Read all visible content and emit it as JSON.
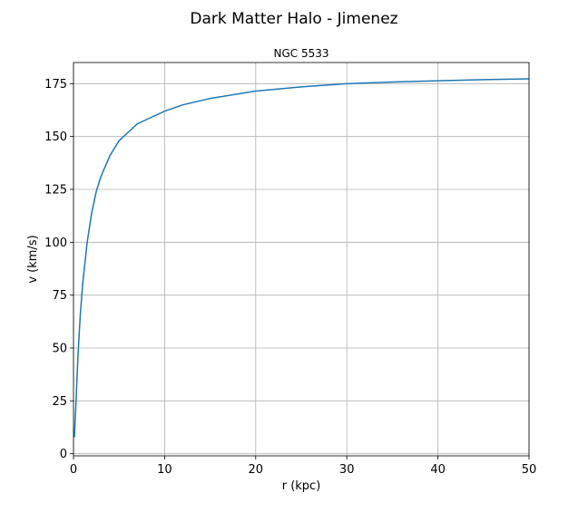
{
  "figure": {
    "suptitle": "Dark Matter Halo - Jimenez"
  },
  "chart_data": {
    "type": "line",
    "title": "NGC 5533",
    "xlabel": "r (kpc)",
    "ylabel": "v (km/s)",
    "xlim": [
      0,
      50
    ],
    "ylim": [
      -1,
      185
    ],
    "xticks": [
      0,
      10,
      20,
      30,
      40,
      50
    ],
    "yticks": [
      0,
      25,
      50,
      75,
      100,
      125,
      150,
      175
    ],
    "grid": true,
    "legend": "none",
    "series": [
      {
        "color": "#1f77b4",
        "x": [
          0.1,
          0.25,
          0.5,
          0.75,
          1,
          1.5,
          2,
          2.5,
          3,
          4,
          5,
          6,
          7,
          8,
          10,
          12,
          15,
          20,
          25,
          30,
          35,
          40,
          45,
          50
        ],
        "y": [
          8,
          22,
          47,
          66,
          80,
          100,
          114,
          124,
          131,
          141,
          148,
          152,
          156,
          158,
          162,
          165,
          168,
          171.5,
          173.5,
          175,
          175.8,
          176.4,
          176.9,
          177.3
        ]
      }
    ]
  }
}
